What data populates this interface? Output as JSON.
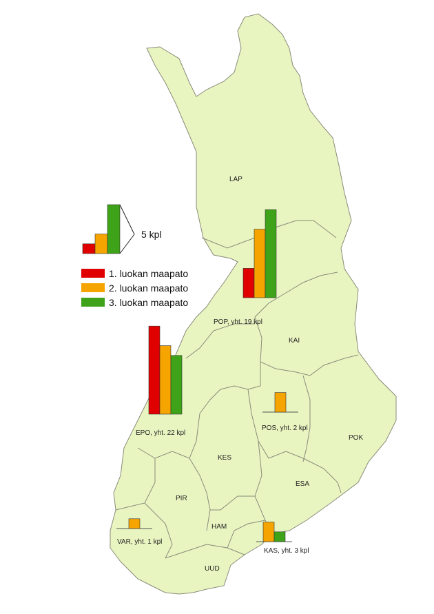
{
  "colors": {
    "land": "#e8f5c0",
    "border": "#8a8a7a",
    "class1": "#e00000",
    "class2": "#f5a400",
    "class3": "#3ea318"
  },
  "scale": {
    "label": "5 kpl",
    "value": 5
  },
  "legend": [
    {
      "label": "1. luokan maapato",
      "color": "#e00000"
    },
    {
      "label": "2. luokan maapato",
      "color": "#f5a400"
    },
    {
      "label": "3. luokan maapato",
      "color": "#3ea318"
    }
  ],
  "regions": [
    {
      "id": "LAP",
      "label": "LAP"
    },
    {
      "id": "KAI",
      "label": "KAI"
    },
    {
      "id": "POK",
      "label": "POK"
    },
    {
      "id": "KES",
      "label": "KES"
    },
    {
      "id": "ESA",
      "label": "ESA"
    },
    {
      "id": "PIR",
      "label": "PIR"
    },
    {
      "id": "HAM",
      "label": "HAM"
    },
    {
      "id": "UUD",
      "label": "UUD"
    }
  ],
  "chart_data": {
    "type": "bar",
    "categories": [
      "POP",
      "EPO",
      "POS",
      "VAR",
      "KAS"
    ],
    "series": [
      {
        "name": "1. luokan maapato",
        "values": [
          3,
          9,
          0,
          0,
          0
        ]
      },
      {
        "name": "2. luokan maapato",
        "values": [
          7,
          7,
          2,
          1,
          2
        ]
      },
      {
        "name": "3. luokan maapato",
        "values": [
          9,
          6,
          0,
          0,
          1
        ]
      }
    ],
    "region_labels": [
      "POP, yht. 19 kpl",
      "EPO, yht. 22 kpl",
      "POS, yht. 2 kpl",
      "VAR, yht. 1 kpl",
      "KAS, yht. 3 kpl"
    ],
    "legend_position": "left"
  }
}
